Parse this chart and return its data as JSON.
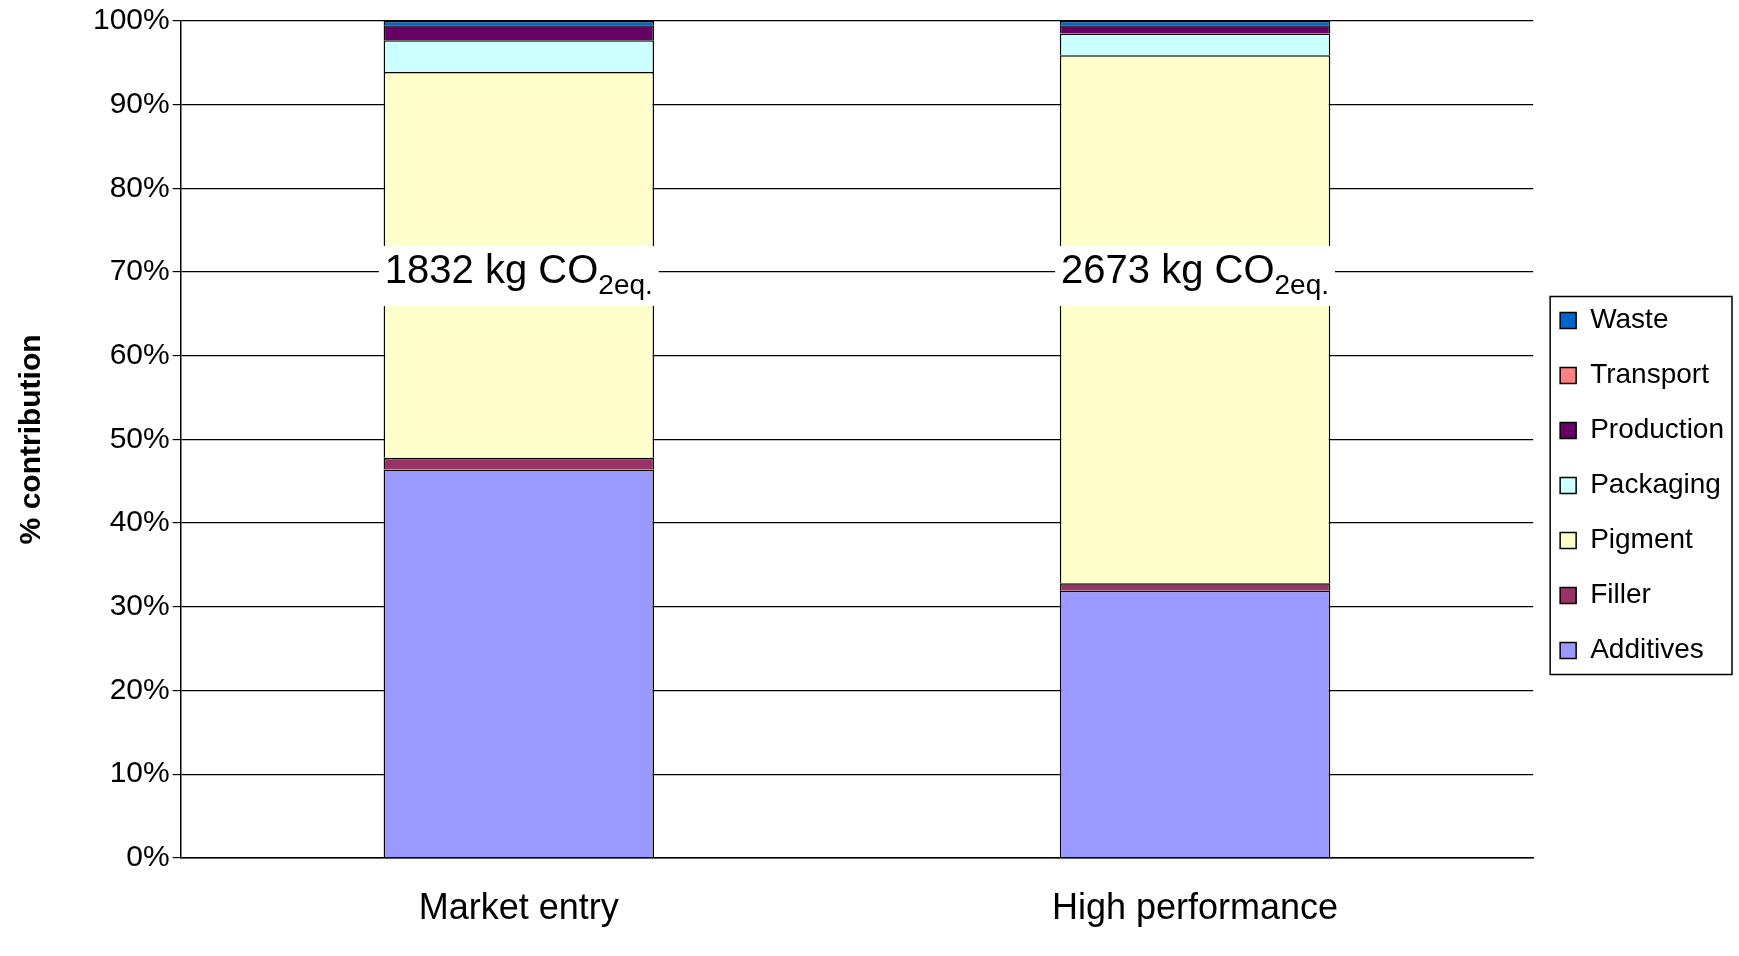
{
  "chart_data": {
    "type": "bar",
    "stacked": true,
    "ylabel": "% contribution",
    "categories": [
      "Market entry",
      "High performance"
    ],
    "series": [
      {
        "name": "Additives",
        "color": "#9999ff",
        "values": [
          46.4,
          31.9
        ]
      },
      {
        "name": "Filler",
        "color": "#993366",
        "values": [
          1.4,
          0.9
        ]
      },
      {
        "name": "Pigment",
        "color": "#ffffcc",
        "values": [
          46.1,
          63.1
        ]
      },
      {
        "name": "Packaging",
        "color": "#ccffff",
        "values": [
          3.8,
          2.6
        ]
      },
      {
        "name": "Production",
        "color": "#660066",
        "values": [
          1.8,
          1.0
        ]
      },
      {
        "name": "Transport",
        "color": "#ff8080",
        "values": [
          0,
          0
        ]
      },
      {
        "name": "Waste",
        "color": "#0066cc",
        "values": [
          0.5,
          0.5
        ]
      }
    ],
    "ylim": [
      0,
      100
    ],
    "yticks": [
      {
        "value": 0,
        "label": "0%"
      },
      {
        "value": 10,
        "label": "10%"
      },
      {
        "value": 20,
        "label": "20%"
      },
      {
        "value": 30,
        "label": "30%"
      },
      {
        "value": 40,
        "label": "40%"
      },
      {
        "value": 50,
        "label": "50%"
      },
      {
        "value": 60,
        "label": "60%"
      },
      {
        "value": 70,
        "label": "70%"
      },
      {
        "value": 80,
        "label": "80%"
      },
      {
        "value": 90,
        "label": "90%"
      },
      {
        "value": 100,
        "label": "100%"
      }
    ],
    "grid": "y",
    "legend": "right",
    "annotations": [
      "1832 kg CO$_{2eq.}$",
      "2673 kg CO$_{2eq.}$"
    ]
  }
}
